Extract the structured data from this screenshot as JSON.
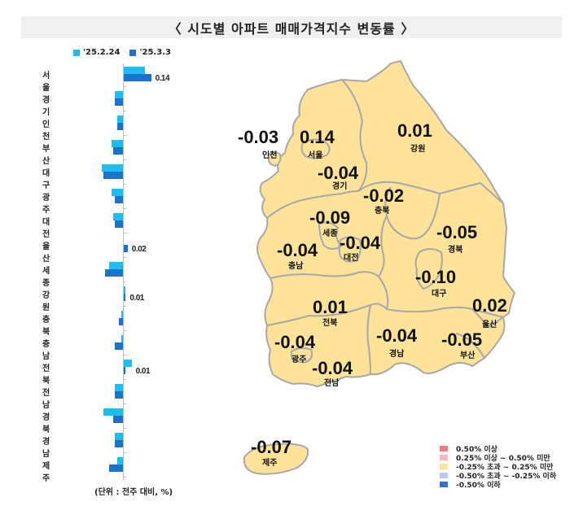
{
  "title": "〈 시도별 아파트 매매가격지수 변동률 〉",
  "legend": {
    "prev_label": "'25.2.24",
    "curr_label": "'25.3.3",
    "prev_color": "#1ebcf0",
    "curr_color": "#1a73c8"
  },
  "unit_note": "(단위 : 전주 대비, %)",
  "map_legend": [
    {
      "label": "0.50% 이상",
      "color": "#ee7b80"
    },
    {
      "label": "0.25% 이상 ~ 0.50% 미만",
      "color": "#f6b8b8"
    },
    {
      "label": "-0.25% 초과 ~ 0.25% 미만",
      "color": "#fde29a"
    },
    {
      "label": "-0.50% 초과 ~ -0.25% 이하",
      "color": "#b8c8ea"
    },
    {
      "label": "-0.50% 이하",
      "color": "#3b6cc4"
    }
  ],
  "map_regions": [
    {
      "name": "인천",
      "value": "-0.03"
    },
    {
      "name": "서울",
      "value": "0.14"
    },
    {
      "name": "경기",
      "value": "-0.04"
    },
    {
      "name": "강원",
      "value": "0.01"
    },
    {
      "name": "충북",
      "value": "-0.02"
    },
    {
      "name": "세종",
      "value": "-0.09"
    },
    {
      "name": "대전",
      "value": "-0.04"
    },
    {
      "name": "충남",
      "value": "-0.04"
    },
    {
      "name": "경북",
      "value": "-0.05"
    },
    {
      "name": "대구",
      "value": "-0.10"
    },
    {
      "name": "울산",
      "value": "0.02"
    },
    {
      "name": "전북",
      "value": "0.01"
    },
    {
      "name": "광주",
      "value": "-0.04"
    },
    {
      "name": "전남",
      "value": "-0.04"
    },
    {
      "name": "경남",
      "value": "-0.04"
    },
    {
      "name": "부산",
      "value": "-0.05"
    },
    {
      "name": "제주",
      "value": "-0.07"
    }
  ],
  "chart_data": {
    "type": "bar",
    "orientation": "horizontal",
    "title": "〈 시도별 아파트 매매가격지수 변동률 〉",
    "xlabel": "(단위 : 전주 대비, %)",
    "ylabel": "",
    "legend_position": "top",
    "grid": false,
    "categories": [
      "서울",
      "경기",
      "인천",
      "부산",
      "대구",
      "광주",
      "대전",
      "울산",
      "세종",
      "강원",
      "충북",
      "충남",
      "전북",
      "전남",
      "경북",
      "경남",
      "제주"
    ],
    "series": [
      {
        "name": "'25.2.24",
        "values": [
          0.11,
          -0.04,
          -0.03,
          -0.06,
          -0.11,
          -0.06,
          -0.05,
          0.0,
          -0.07,
          0.01,
          -0.01,
          -0.01,
          0.04,
          -0.04,
          -0.1,
          -0.04,
          -0.03
        ]
      },
      {
        "name": "'25.3.3",
        "values": [
          0.14,
          -0.04,
          -0.03,
          -0.05,
          -0.1,
          -0.04,
          -0.04,
          0.02,
          -0.09,
          0.01,
          -0.02,
          -0.04,
          0.01,
          -0.04,
          -0.05,
          -0.04,
          -0.07
        ]
      }
    ],
    "value_labels": [
      "0.14",
      "-0.04",
      "-0.03",
      "-0.05",
      "-0.10",
      "-0.04",
      "-0.04",
      "0.02",
      "-0.09",
      "0.01",
      "-0.02",
      "-0.04",
      "0.01",
      "-0.04",
      "-0.05",
      "-0.04",
      "-0.07"
    ]
  }
}
